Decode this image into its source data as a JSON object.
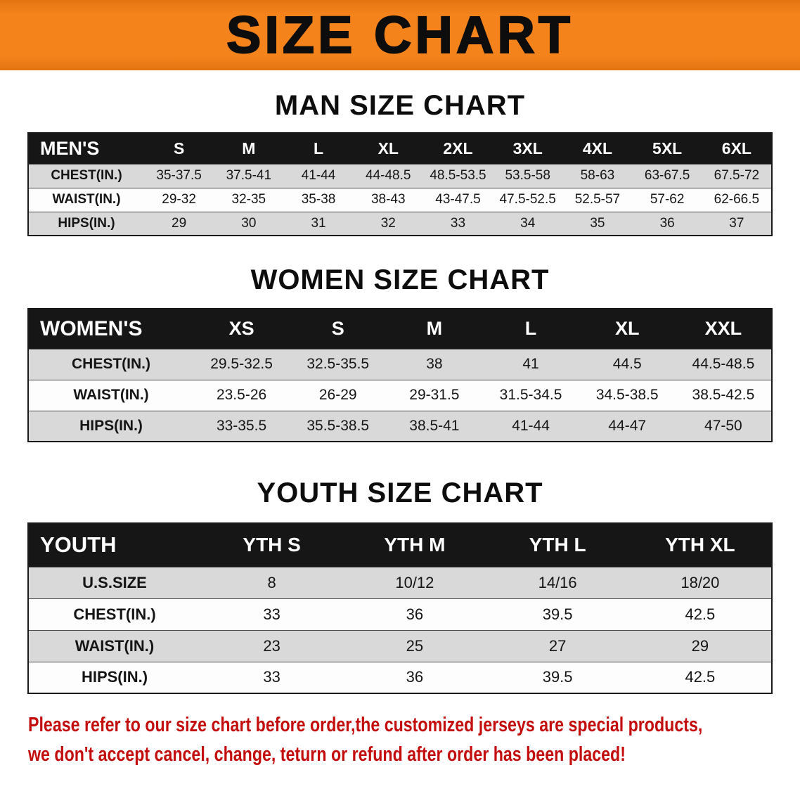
{
  "banner": {
    "title": "SIZE CHART"
  },
  "colors": {
    "banner_orange": "#f5831c",
    "table_header_black": "#161616",
    "row_stripe_gray": "#d9d9d9",
    "disclaimer_red": "#c40d0d"
  },
  "sections": [
    {
      "heading": "MAN SIZE CHART",
      "table": {
        "header": [
          "MEN'S",
          "S",
          "M",
          "L",
          "XL",
          "2XL",
          "3XL",
          "4XL",
          "5XL",
          "6XL"
        ],
        "rows": [
          [
            "CHEST(IN.)",
            "35-37.5",
            "37.5-41",
            "41-44",
            "44-48.5",
            "48.5-53.5",
            "53.5-58",
            "58-63",
            "63-67.5",
            "67.5-72"
          ],
          [
            "WAIST(IN.)",
            "29-32",
            "32-35",
            "35-38",
            "38-43",
            "43-47.5",
            "47.5-52.5",
            "52.5-57",
            "57-62",
            "62-66.5"
          ],
          [
            "HIPS(IN.)",
            "29",
            "30",
            "31",
            "32",
            "33",
            "34",
            "35",
            "36",
            "37"
          ]
        ]
      }
    },
    {
      "heading": "WOMEN SIZE CHART",
      "table": {
        "header": [
          "WOMEN'S",
          "XS",
          "S",
          "M",
          "L",
          "XL",
          "XXL"
        ],
        "rows": [
          [
            "CHEST(IN.)",
            "29.5-32.5",
            "32.5-35.5",
            "38",
            "41",
            "44.5",
            "44.5-48.5"
          ],
          [
            "WAIST(IN.)",
            "23.5-26",
            "26-29",
            "29-31.5",
            "31.5-34.5",
            "34.5-38.5",
            "38.5-42.5"
          ],
          [
            "HIPS(IN.)",
            "33-35.5",
            "35.5-38.5",
            "38.5-41",
            "41-44",
            "44-47",
            "47-50"
          ]
        ]
      }
    },
    {
      "heading": "YOUTH SIZE CHART",
      "table": {
        "header": [
          "YOUTH",
          "YTH S",
          "YTH M",
          "YTH L",
          "YTH XL"
        ],
        "rows": [
          [
            "U.S.SIZE",
            "8",
            "10/12",
            "14/16",
            "18/20"
          ],
          [
            "CHEST(IN.)",
            "33",
            "36",
            "39.5",
            "42.5"
          ],
          [
            "WAIST(IN.)",
            "23",
            "25",
            "27",
            "29"
          ],
          [
            "HIPS(IN.)",
            "33",
            "36",
            "39.5",
            "42.5"
          ]
        ]
      }
    }
  ],
  "disclaimer": {
    "line1": "Please refer to our size chart before order,the customized jerseys are special products,",
    "line2": "we don't accept cancel, change, teturn or refund after order has been placed!"
  }
}
